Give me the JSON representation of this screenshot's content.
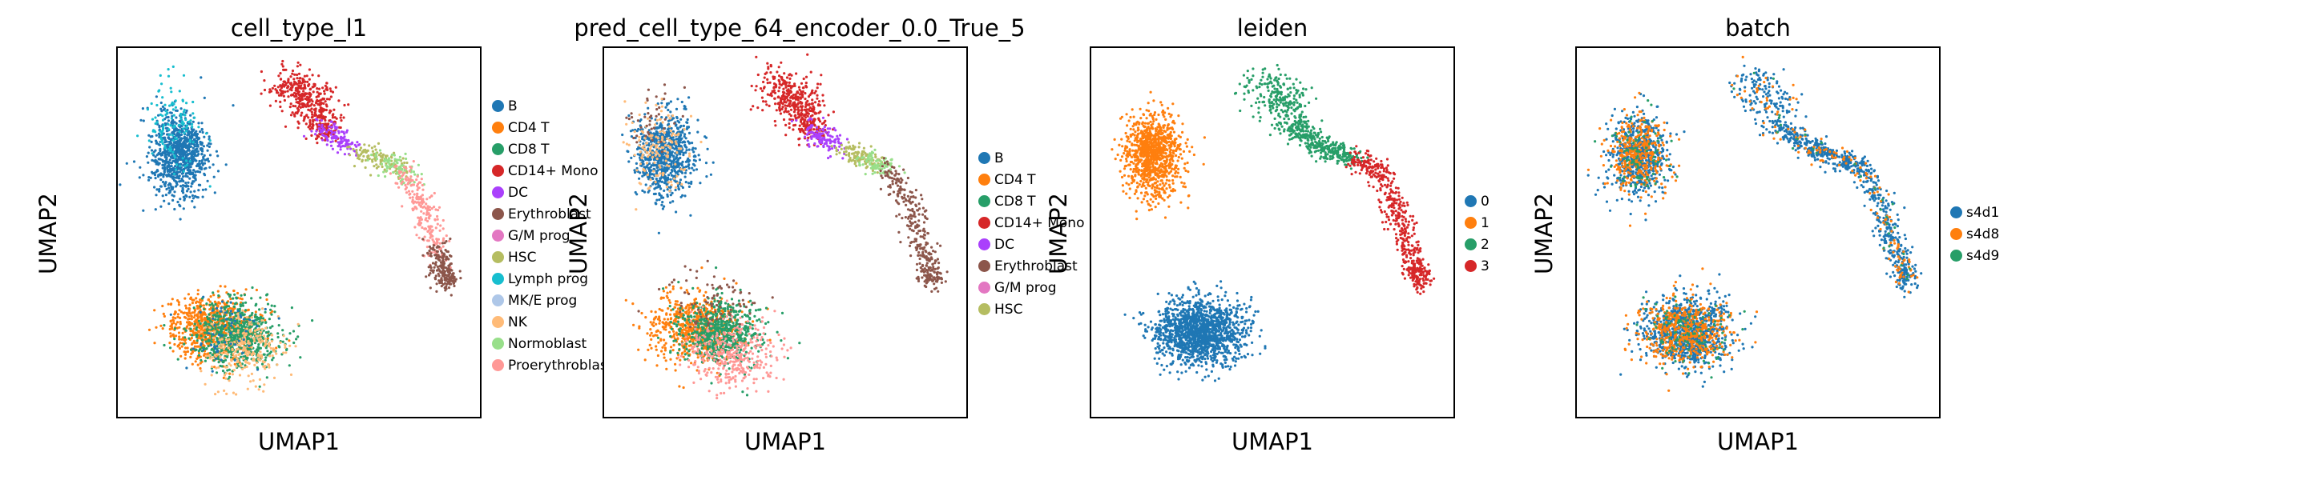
{
  "chart_data": [
    {
      "type": "scatter",
      "title": "cell_type_l1",
      "xlabel": "UMAP1",
      "ylabel": "UMAP2",
      "legend_placement": "right",
      "legend": [
        {
          "label": "B",
          "color": "#1f77b4"
        },
        {
          "label": "CD4 T",
          "color": "#ff7f0e"
        },
        {
          "label": "CD8 T",
          "color": "#279e68"
        },
        {
          "label": "CD14+ Mono",
          "color": "#d62728"
        },
        {
          "label": "DC",
          "color": "#aa40fc"
        },
        {
          "label": "Erythroblast",
          "color": "#8c564b"
        },
        {
          "label": "G/M prog",
          "color": "#e377c2"
        },
        {
          "label": "HSC",
          "color": "#b5bd61"
        },
        {
          "label": "Lymph prog",
          "color": "#17becf"
        },
        {
          "label": "MK/E prog",
          "color": "#aec7e8"
        },
        {
          "label": "NK",
          "color": "#ffbb78"
        },
        {
          "label": "Normoblast",
          "color": "#98df8a"
        },
        {
          "label": "Proerythroblas",
          "color": "#ff9896"
        }
      ]
    },
    {
      "type": "scatter",
      "title": "pred_cell_type_64_encoder_0.0_True_5",
      "xlabel": "UMAP1",
      "ylabel": "UMAP2",
      "legend_placement": "right",
      "legend": [
        {
          "label": "B",
          "color": "#1f77b4"
        },
        {
          "label": "CD4 T",
          "color": "#ff7f0e"
        },
        {
          "label": "CD8 T",
          "color": "#279e68"
        },
        {
          "label": "CD14+ Mono",
          "color": "#d62728"
        },
        {
          "label": "DC",
          "color": "#aa40fc"
        },
        {
          "label": "Erythroblast",
          "color": "#8c564b"
        },
        {
          "label": "G/M prog",
          "color": "#e377c2"
        },
        {
          "label": "HSC",
          "color": "#b5bd61"
        }
      ]
    },
    {
      "type": "scatter",
      "title": "leiden",
      "xlabel": "UMAP1",
      "ylabel": "UMAP2",
      "legend_placement": "right",
      "legend": [
        {
          "label": "0",
          "color": "#1f77b4"
        },
        {
          "label": "1",
          "color": "#ff7f0e"
        },
        {
          "label": "2",
          "color": "#279e68"
        },
        {
          "label": "3",
          "color": "#d62728"
        }
      ]
    },
    {
      "type": "scatter",
      "title": "batch",
      "xlabel": "UMAP1",
      "ylabel": "UMAP2",
      "legend_placement": "right",
      "legend": [
        {
          "label": "s4d1",
          "color": "#1f77b4"
        },
        {
          "label": "s4d8",
          "color": "#ff7f0e"
        },
        {
          "label": "s4d9",
          "color": "#279e68"
        }
      ]
    }
  ]
}
